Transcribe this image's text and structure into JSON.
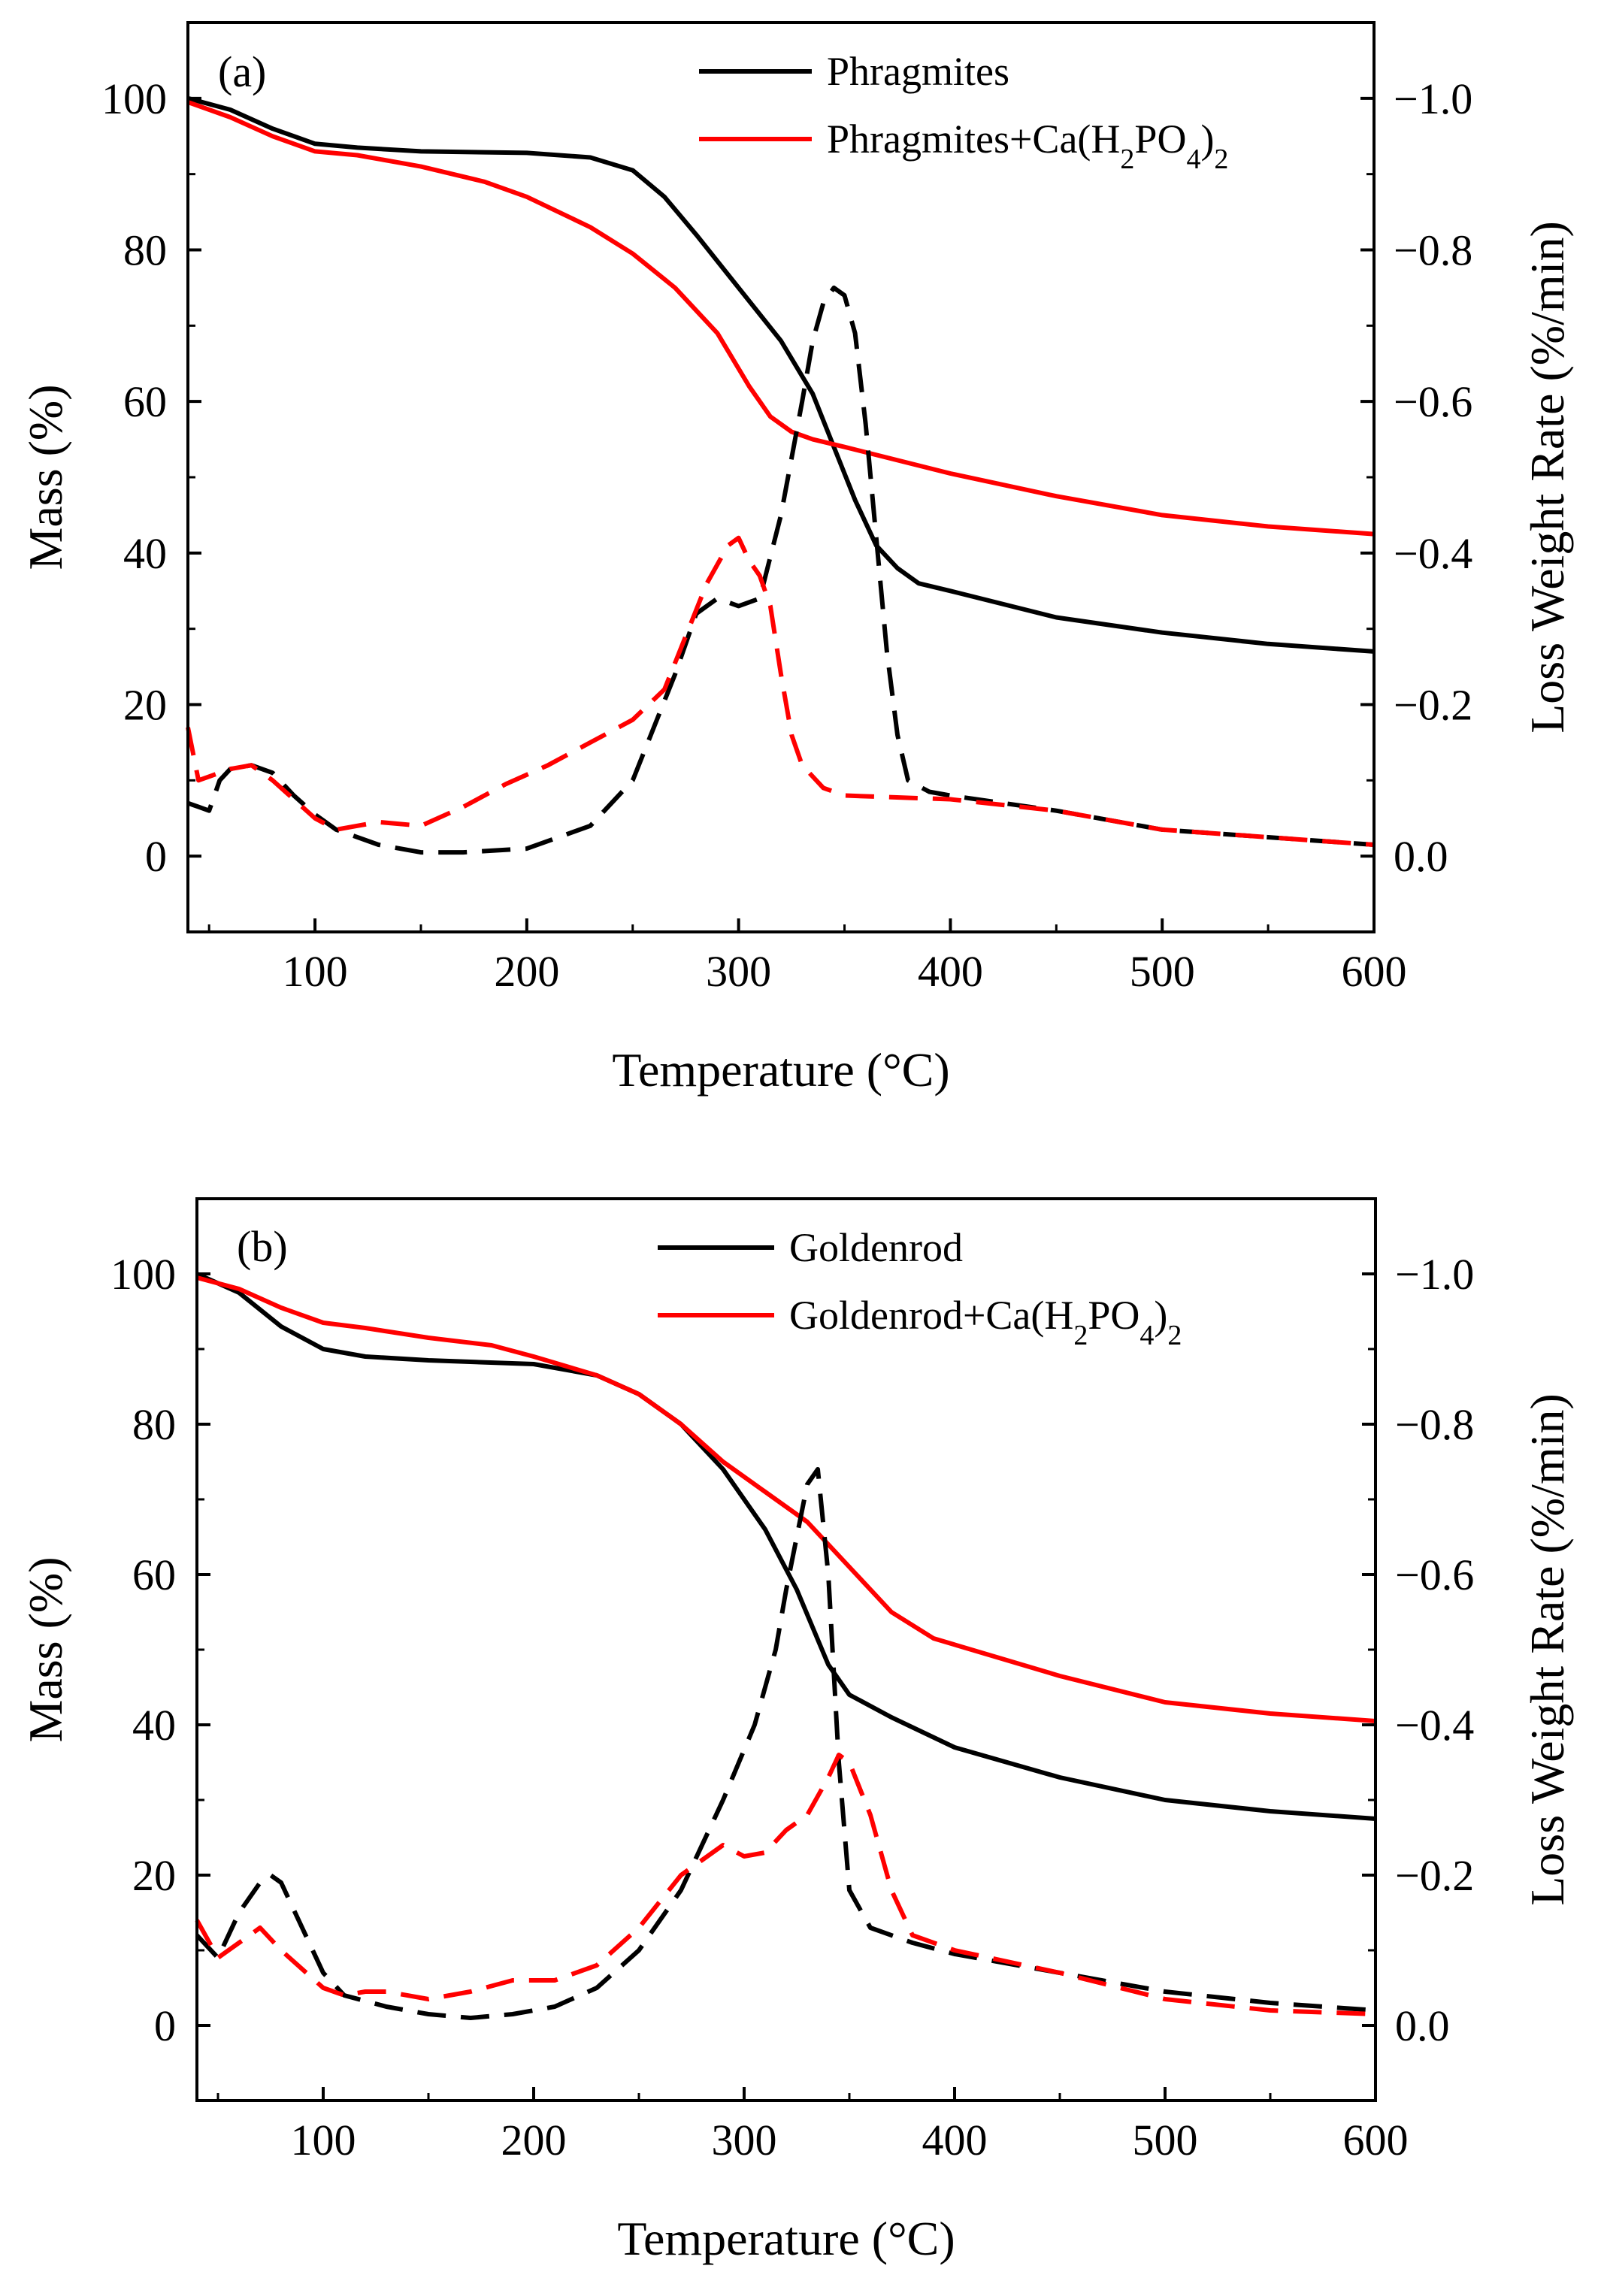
{
  "chart_data": [
    {
      "type": "line",
      "panel_label": "(a)",
      "xlabel": "Temperature (°C)",
      "ylabel": "Mass (%)",
      "y2label": "Loss Weight Rate (%/min)",
      "xlim": [
        40,
        600
      ],
      "ylim": [
        -10,
        110
      ],
      "y2lim": [
        0.1,
        -1.1
      ],
      "xticks": [
        "100",
        "200",
        "300",
        "400",
        "500",
        "600"
      ],
      "yticks": [
        "0",
        "20",
        "40",
        "60",
        "80",
        "100"
      ],
      "y2ticks": [
        "0.0",
        "−0.2",
        "−0.4",
        "−0.6",
        "−0.8",
        "−1.0"
      ],
      "legend": [
        {
          "text": "Phragmites",
          "color": "#000000"
        },
        {
          "text": "Phragmites+Ca(H",
          "sub1": "2",
          "mid": "PO",
          "sub2": "4",
          "close": ")",
          "sub3": "2",
          "color": "#ff0000"
        }
      ],
      "series": [
        {
          "name": "Phragmites mass",
          "axis": "left",
          "style": "solid",
          "color": "#000000",
          "x": [
            40,
            60,
            80,
            100,
            120,
            150,
            200,
            230,
            250,
            265,
            280,
            300,
            320,
            335,
            345,
            355,
            365,
            375,
            385,
            400,
            450,
            500,
            550,
            600
          ],
          "y": [
            100,
            98.5,
            96,
            94,
            93.5,
            93,
            92.8,
            92.2,
            90.5,
            87,
            82,
            75,
            68,
            61,
            54,
            47,
            41,
            38,
            36,
            35,
            31.5,
            29.5,
            28,
            27
          ]
        },
        {
          "name": "Phragmites+Ca(H2PO4)2 mass",
          "axis": "left",
          "style": "solid",
          "color": "#ff0000",
          "x": [
            40,
            60,
            80,
            100,
            120,
            150,
            180,
            200,
            230,
            250,
            270,
            290,
            305,
            315,
            325,
            335,
            350,
            400,
            450,
            500,
            550,
            600
          ],
          "y": [
            99.5,
            97.5,
            95,
            93,
            92.5,
            91,
            89,
            87,
            83,
            79.5,
            75,
            69,
            62,
            58,
            56,
            55,
            54,
            50.5,
            47.5,
            45,
            43.5,
            42.5
          ]
        },
        {
          "name": "Phragmites DTG",
          "axis": "right",
          "style": "dashed",
          "color": "#000000",
          "x": [
            40,
            45,
            50,
            55,
            60,
            70,
            80,
            90,
            100,
            110,
            130,
            150,
            170,
            200,
            230,
            250,
            260,
            270,
            280,
            290,
            300,
            310,
            320,
            330,
            335,
            340,
            345,
            350,
            355,
            360,
            365,
            370,
            375,
            380,
            390,
            400,
            450,
            500,
            550,
            600
          ],
          "y": [
            -0.07,
            -0.065,
            -0.06,
            -0.1,
            -0.115,
            -0.12,
            -0.11,
            -0.08,
            -0.055,
            -0.035,
            -0.015,
            -0.005,
            -0.005,
            -0.01,
            -0.04,
            -0.1,
            -0.17,
            -0.24,
            -0.32,
            -0.34,
            -0.33,
            -0.34,
            -0.45,
            -0.6,
            -0.68,
            -0.73,
            -0.75,
            -0.74,
            -0.69,
            -0.57,
            -0.42,
            -0.27,
            -0.16,
            -0.1,
            -0.085,
            -0.08,
            -0.06,
            -0.035,
            -0.025,
            -0.015
          ]
        },
        {
          "name": "Phragmites+Ca(H2PO4)2 DTG",
          "axis": "right",
          "style": "dashed",
          "color": "#ff0000",
          "x": [
            40,
            45,
            50,
            60,
            70,
            80,
            90,
            100,
            110,
            120,
            130,
            150,
            170,
            190,
            210,
            230,
            250,
            265,
            275,
            285,
            295,
            300,
            305,
            310,
            315,
            320,
            325,
            330,
            340,
            350,
            400,
            450,
            500,
            550,
            600
          ],
          "y": [
            -0.17,
            -0.1,
            -0.105,
            -0.115,
            -0.12,
            -0.1,
            -0.075,
            -0.05,
            -0.035,
            -0.04,
            -0.045,
            -0.04,
            -0.065,
            -0.095,
            -0.12,
            -0.15,
            -0.18,
            -0.22,
            -0.29,
            -0.36,
            -0.41,
            -0.42,
            -0.39,
            -0.37,
            -0.33,
            -0.24,
            -0.16,
            -0.12,
            -0.09,
            -0.08,
            -0.075,
            -0.06,
            -0.035,
            -0.025,
            -0.015
          ]
        }
      ]
    },
    {
      "type": "line",
      "panel_label": "(b)",
      "xlabel": "Temperature (°C)",
      "ylabel": "Mass (%)",
      "y2label": "Loss Weight Rate (%/min)",
      "xlim": [
        40,
        600
      ],
      "ylim": [
        -10,
        110
      ],
      "y2lim": [
        0.1,
        -1.1
      ],
      "xticks": [
        "100",
        "200",
        "300",
        "400",
        "500",
        "600"
      ],
      "yticks": [
        "0",
        "20",
        "40",
        "60",
        "80",
        "100"
      ],
      "y2ticks": [
        "0.0",
        "−0.2",
        "−0.4",
        "−0.6",
        "−0.8",
        "−1.0"
      ],
      "legend": [
        {
          "text": "Goldenrod",
          "color": "#000000"
        },
        {
          "text": "Goldenrod+Ca(H",
          "sub1": "2",
          "mid": "PO",
          "sub2": "4",
          "close": ")",
          "sub3": "2",
          "color": "#ff0000"
        }
      ],
      "series": [
        {
          "name": "Goldenrod mass",
          "axis": "left",
          "style": "solid",
          "color": "#000000",
          "x": [
            40,
            60,
            80,
            100,
            120,
            150,
            200,
            230,
            250,
            270,
            290,
            310,
            325,
            340,
            350,
            370,
            400,
            450,
            500,
            550,
            600
          ],
          "y": [
            100,
            97.5,
            93,
            90,
            89,
            88.5,
            88,
            86.5,
            84,
            80,
            74,
            66,
            58,
            48,
            44,
            41,
            37,
            33,
            30,
            28.5,
            27.5
          ]
        },
        {
          "name": "Goldenrod+Ca(H2PO4)2 mass",
          "axis": "left",
          "style": "solid",
          "color": "#ff0000",
          "x": [
            40,
            60,
            80,
            100,
            120,
            150,
            180,
            200,
            230,
            250,
            270,
            290,
            310,
            330,
            350,
            370,
            390,
            420,
            450,
            500,
            550,
            600
          ],
          "y": [
            99.5,
            98,
            95.5,
            93.5,
            92.8,
            91.5,
            90.5,
            89,
            86.5,
            84,
            80,
            75,
            71,
            67,
            61,
            55,
            51.5,
            49,
            46.5,
            43,
            41.5,
            40.5
          ]
        },
        {
          "name": "Goldenrod DTG",
          "axis": "right",
          "style": "dashed",
          "color": "#000000",
          "x": [
            40,
            50,
            60,
            70,
            75,
            80,
            90,
            100,
            110,
            130,
            150,
            170,
            190,
            210,
            230,
            250,
            270,
            290,
            305,
            315,
            320,
            325,
            330,
            335,
            340,
            345,
            350,
            360,
            380,
            400,
            450,
            500,
            550,
            600
          ],
          "y": [
            -0.12,
            -0.09,
            -0.15,
            -0.19,
            -0.2,
            -0.19,
            -0.13,
            -0.07,
            -0.04,
            -0.025,
            -0.015,
            -0.01,
            -0.015,
            -0.025,
            -0.05,
            -0.1,
            -0.18,
            -0.3,
            -0.4,
            -0.5,
            -0.58,
            -0.65,
            -0.72,
            -0.74,
            -0.6,
            -0.35,
            -0.18,
            -0.13,
            -0.11,
            -0.095,
            -0.07,
            -0.045,
            -0.03,
            -0.02
          ]
        },
        {
          "name": "Goldenrod+Ca(H2PO4)2 DTG",
          "axis": "right",
          "style": "dashed",
          "color": "#ff0000",
          "x": [
            40,
            50,
            60,
            70,
            80,
            90,
            100,
            110,
            120,
            130,
            150,
            170,
            190,
            200,
            210,
            230,
            250,
            270,
            280,
            290,
            300,
            310,
            320,
            330,
            340,
            345,
            350,
            360,
            370,
            380,
            400,
            450,
            500,
            550,
            600
          ],
          "y": [
            -0.14,
            -0.09,
            -0.11,
            -0.13,
            -0.1,
            -0.075,
            -0.05,
            -0.04,
            -0.045,
            -0.045,
            -0.035,
            -0.045,
            -0.06,
            -0.06,
            -0.06,
            -0.08,
            -0.13,
            -0.2,
            -0.22,
            -0.24,
            -0.225,
            -0.23,
            -0.26,
            -0.28,
            -0.33,
            -0.36,
            -0.35,
            -0.28,
            -0.18,
            -0.12,
            -0.1,
            -0.07,
            -0.035,
            -0.02,
            -0.015
          ]
        }
      ]
    }
  ]
}
